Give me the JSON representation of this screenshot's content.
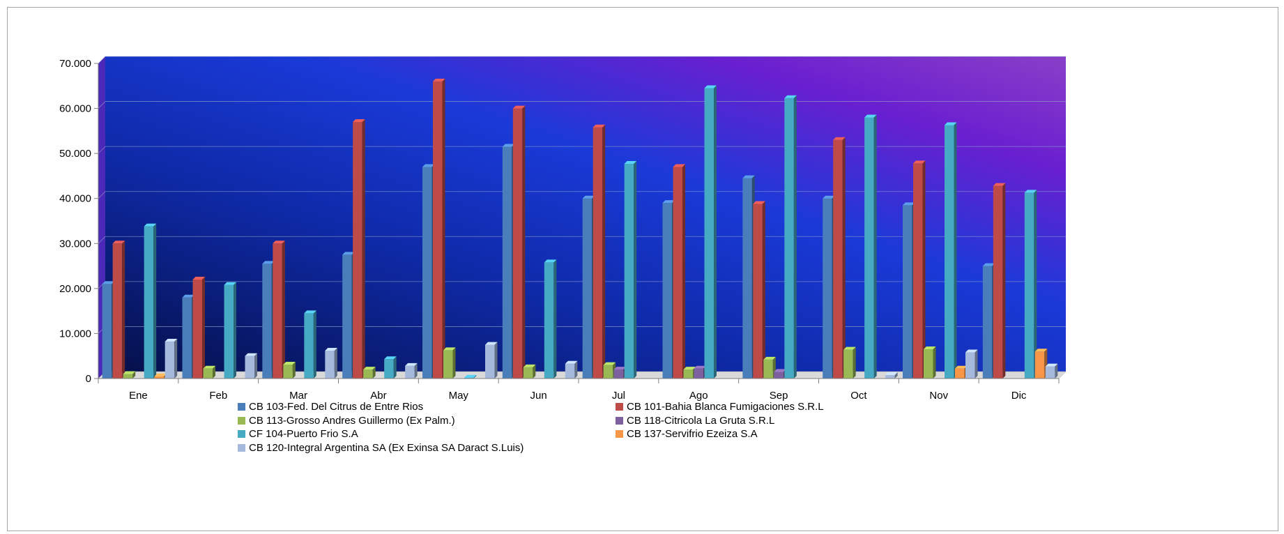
{
  "chart_data": {
    "type": "bar",
    "title": "",
    "xlabel": "",
    "ylabel": "",
    "ylim": [
      0,
      70000
    ],
    "yticks": [
      "0",
      "10.000",
      "20.000",
      "30.000",
      "40.000",
      "50.000",
      "60.000",
      "70.000"
    ],
    "ytick_values": [
      0,
      10000,
      20000,
      30000,
      40000,
      50000,
      60000,
      70000
    ],
    "grid": true,
    "legend_position": "bottom",
    "categories": [
      "Ene",
      "Feb",
      "Mar",
      "Abr",
      "May",
      "Jun",
      "Jul",
      "Ago",
      "Sep",
      "Oct",
      "Nov",
      "Dic"
    ],
    "series": [
      {
        "name": "CB 103-Fed. Del Citrus de Entre Rios",
        "color": "#4a7ebb",
        "values": [
          21000,
          18000,
          25500,
          27500,
          47000,
          51500,
          40000,
          39000,
          44500,
          40000,
          38500,
          25000
        ]
      },
      {
        "name": "CB 101-Bahia Blanca Fumigaciones S.R.L",
        "color": "#be4b48",
        "values": [
          30000,
          22000,
          30000,
          57000,
          66000,
          60000,
          55800,
          47000,
          38800,
          53000,
          47800,
          42800
        ]
      },
      {
        "name": "CB 113-Grosso Andres Guillermo (Ex Palm.)",
        "color": "#98b954",
        "values": [
          1000,
          2200,
          3100,
          2000,
          6300,
          2500,
          3000,
          2000,
          4200,
          6400,
          6500,
          0
        ]
      },
      {
        "name": "CB 118-Citricola La Gruta S.R.L",
        "color": "#7d60a0",
        "values": [
          0,
          0,
          0,
          0,
          0,
          0,
          2000,
          2200,
          1500,
          0,
          0,
          0
        ]
      },
      {
        "name": "CF 104-Puerto Frio S.A",
        "color": "#46aac5",
        "values": [
          33800,
          20800,
          14500,
          4300,
          200,
          25800,
          47700,
          64500,
          62300,
          58000,
          56300,
          41300
        ]
      },
      {
        "name": "CB 137-Servifrio Ezeiza S.A",
        "color": "#f79646",
        "values": [
          500,
          0,
          0,
          0,
          0,
          0,
          0,
          0,
          0,
          0,
          2200,
          6000
        ]
      },
      {
        "name": "CB 120-Integral Argentina SA (Ex Exinsa SA Daract S.Luis)",
        "color": "#a5b9dd",
        "values": [
          8200,
          5000,
          6200,
          2800,
          7500,
          3300,
          0,
          0,
          0,
          800,
          5800,
          2700
        ]
      }
    ]
  }
}
